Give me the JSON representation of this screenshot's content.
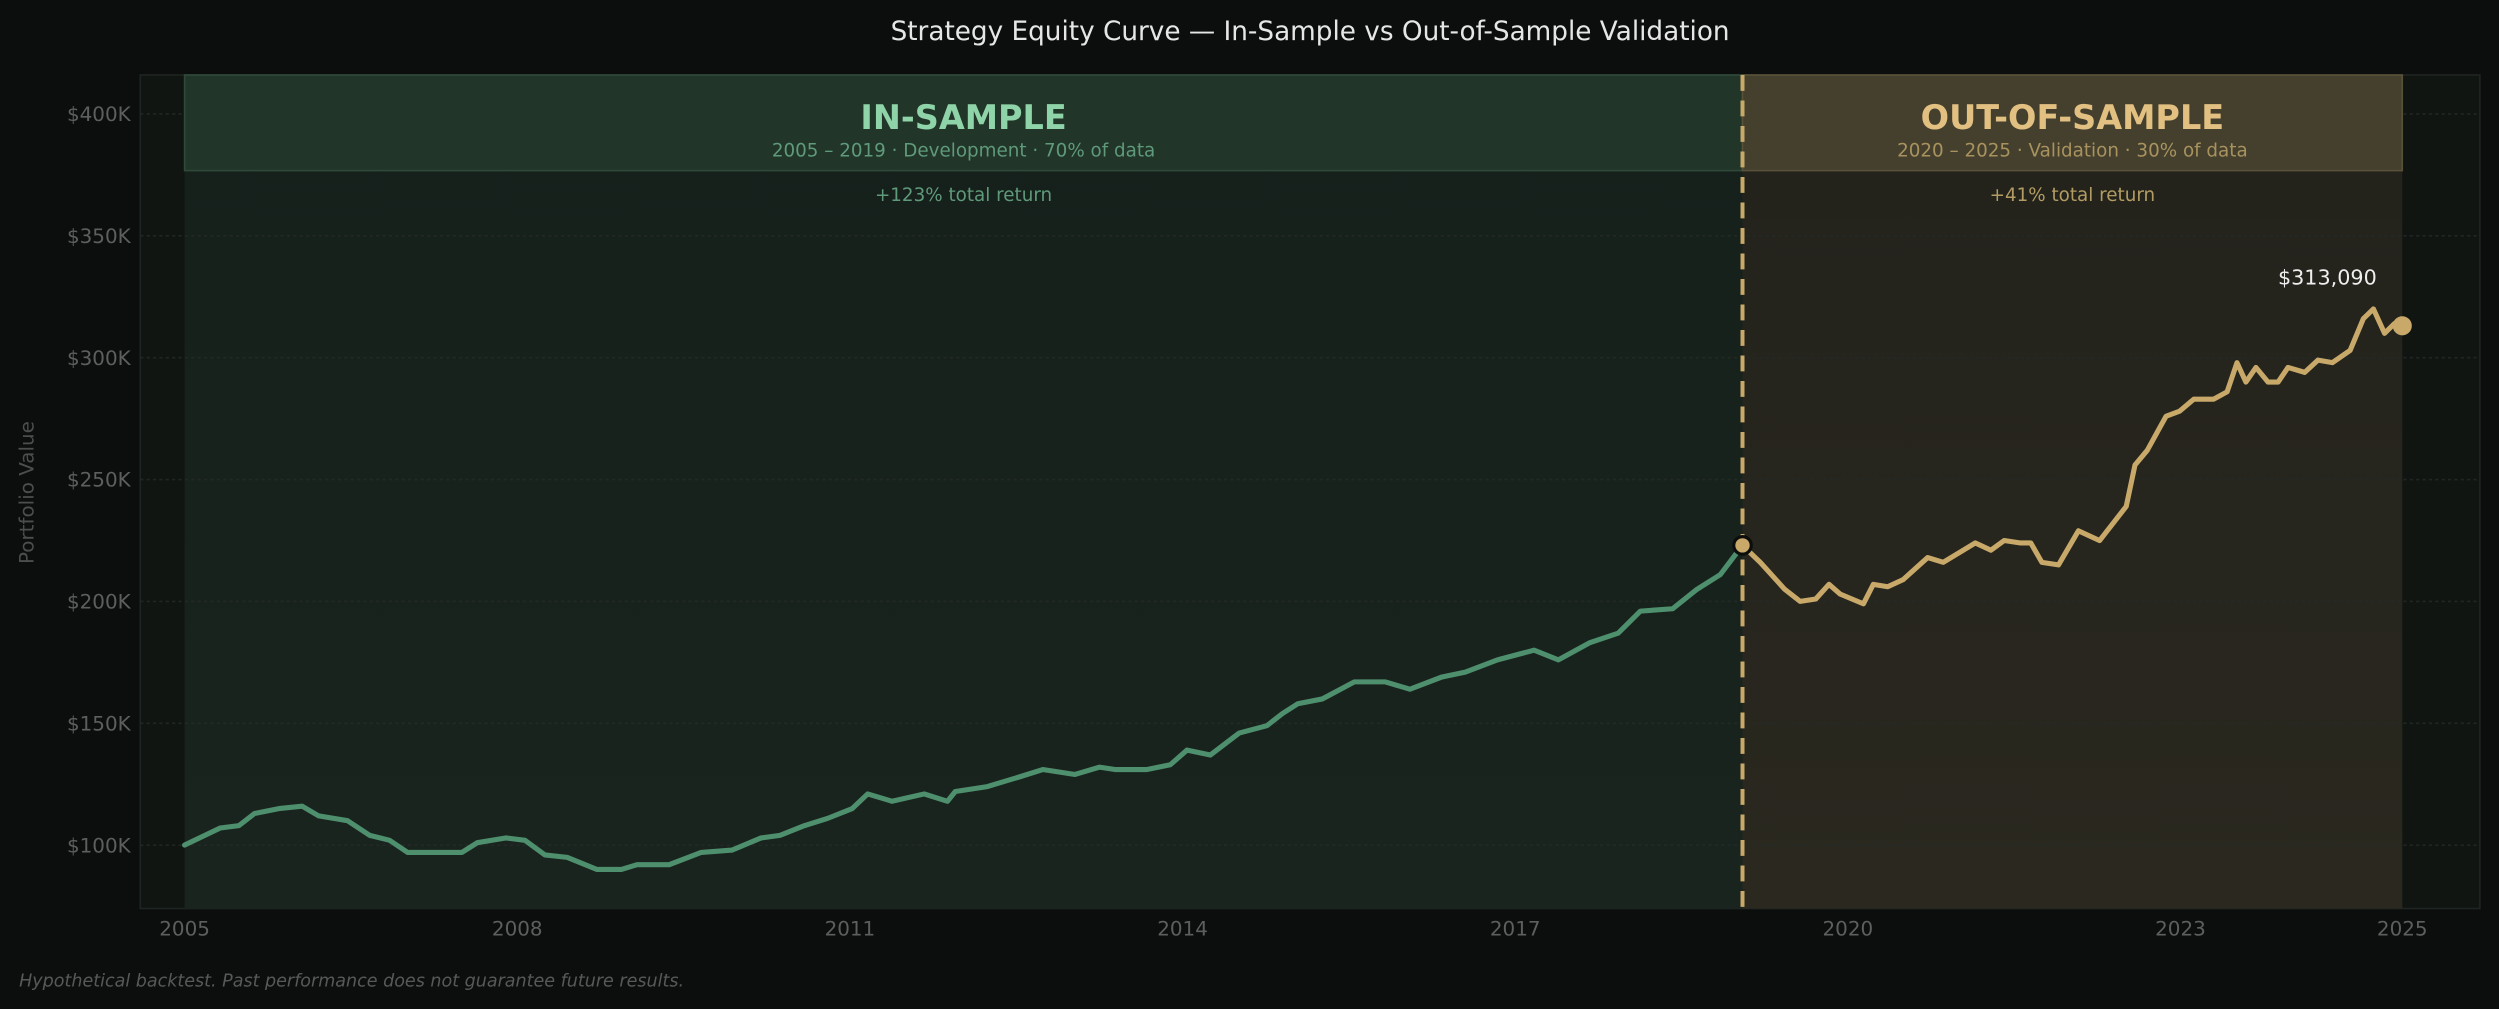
{
  "chart_data": {
    "type": "line",
    "title": "Strategy Equity Curve — In-Sample vs Out-of-Sample Validation",
    "xlabel": "",
    "ylabel": "Portfolio Value",
    "xlim": [
      2004.6,
      2025.7
    ],
    "ylim": [
      74000,
      416000
    ],
    "grid": true,
    "x_ticks": [
      2005,
      2008,
      2011,
      2014,
      2017,
      2020,
      2023,
      2025
    ],
    "x_tick_labels": [
      "2005",
      "2008",
      "2011",
      "2014",
      "2017",
      "2020",
      "2023",
      "2025"
    ],
    "y_ticks": [
      100000,
      150000,
      200000,
      250000,
      300000,
      350000,
      400000
    ],
    "y_tick_labels": [
      "$100K",
      "$150K",
      "$200K",
      "$250K",
      "$300K",
      "$350K",
      "$400K"
    ],
    "split_x": 2019.05,
    "regions": [
      {
        "title": "IN-SAMPLE",
        "subtitle": "2005 – 2019  ·  Development  ·  70% of data",
        "return_label": "+123% total return",
        "x_start": 2005.0,
        "x_end": 2019.05,
        "color": "#4e8f6e",
        "title_color": "#8fd4a8"
      },
      {
        "title": "OUT-OF-SAMPLE",
        "subtitle": "2020 – 2025  ·  Validation  ·  30% of data",
        "return_label": "+41% total return",
        "x_start": 2019.05,
        "x_end": 2025.0,
        "color": "#c8a96a",
        "title_color": "#e2c081"
      }
    ],
    "series": [
      {
        "segment": "in-sample",
        "color": "#4e8f6e",
        "x": [
          2005.0,
          2005.32,
          2005.49,
          2005.63,
          2005.85,
          2006.06,
          2006.21,
          2006.47,
          2006.67,
          2006.85,
          2007.01,
          2007.21,
          2007.5,
          2007.64,
          2007.9,
          2008.07,
          2008.25,
          2008.45,
          2008.72,
          2008.94,
          2009.08,
          2009.37,
          2009.66,
          2009.94,
          2010.2,
          2010.37,
          2010.59,
          2010.8,
          2011.02,
          2011.16,
          2011.38,
          2011.67,
          2011.88,
          2011.95,
          2012.24,
          2012.53,
          2012.74,
          2013.03,
          2013.25,
          2013.39,
          2013.68,
          2013.89,
          2014.04,
          2014.25,
          2014.51,
          2014.76,
          2014.9,
          2015.04,
          2015.26,
          2015.55,
          2015.83,
          2016.05,
          2016.34,
          2016.55,
          2016.84,
          2017.17,
          2017.39,
          2017.67,
          2017.93,
          2018.13,
          2018.42,
          2018.64,
          2018.85,
          2019.05
        ],
        "y": [
          100000,
          107000,
          108000,
          113000,
          115000,
          116000,
          112000,
          110000,
          104000,
          102000,
          97000,
          97000,
          97000,
          101000,
          103000,
          102000,
          96000,
          95000,
          90000,
          90000,
          92000,
          92000,
          97000,
          98000,
          103000,
          104000,
          108000,
          111000,
          115000,
          121000,
          118000,
          121000,
          118000,
          122000,
          124000,
          128000,
          131000,
          129000,
          132000,
          131000,
          131000,
          133000,
          139000,
          137000,
          146000,
          149000,
          154000,
          158000,
          160000,
          167000,
          167000,
          164000,
          169000,
          171000,
          176000,
          180000,
          176000,
          183000,
          187000,
          196000,
          197000,
          205000,
          211000,
          223000
        ]
      },
      {
        "segment": "out-of-sample",
        "color": "#c8a96a",
        "x": [
          2019.05,
          2019.21,
          2019.43,
          2019.57,
          2019.71,
          2019.83,
          2019.93,
          2020.14,
          2020.23,
          2020.36,
          2020.5,
          2020.72,
          2020.86,
          2021.15,
          2021.29,
          2021.41,
          2021.55,
          2021.65,
          2021.75,
          2021.9,
          2022.08,
          2022.27,
          2022.51,
          2022.59,
          2022.7,
          2022.87,
          2022.99,
          2023.12,
          2023.3,
          2023.42,
          2023.51,
          2023.59,
          2023.68,
          2023.79,
          2023.88,
          2023.97,
          2024.12,
          2024.24,
          2024.37,
          2024.53,
          2024.65,
          2024.74,
          2024.84,
          2024.93,
          2025.0
        ],
        "y": [
          223000,
          216000,
          205000,
          200000,
          201000,
          207000,
          203000,
          199000,
          207000,
          206000,
          209000,
          218000,
          216000,
          224000,
          221000,
          225000,
          224000,
          224000,
          216000,
          215000,
          229000,
          225000,
          239000,
          256000,
          262000,
          276000,
          278000,
          283000,
          283000,
          286000,
          298000,
          290000,
          296000,
          290000,
          290000,
          296000,
          294000,
          299000,
          298000,
          303000,
          316000,
          320000,
          310000,
          314000,
          313090
        ]
      }
    ],
    "end_label": "$313,090",
    "footnote": "Hypothetical backtest. Past performance does not guarantee future results."
  }
}
